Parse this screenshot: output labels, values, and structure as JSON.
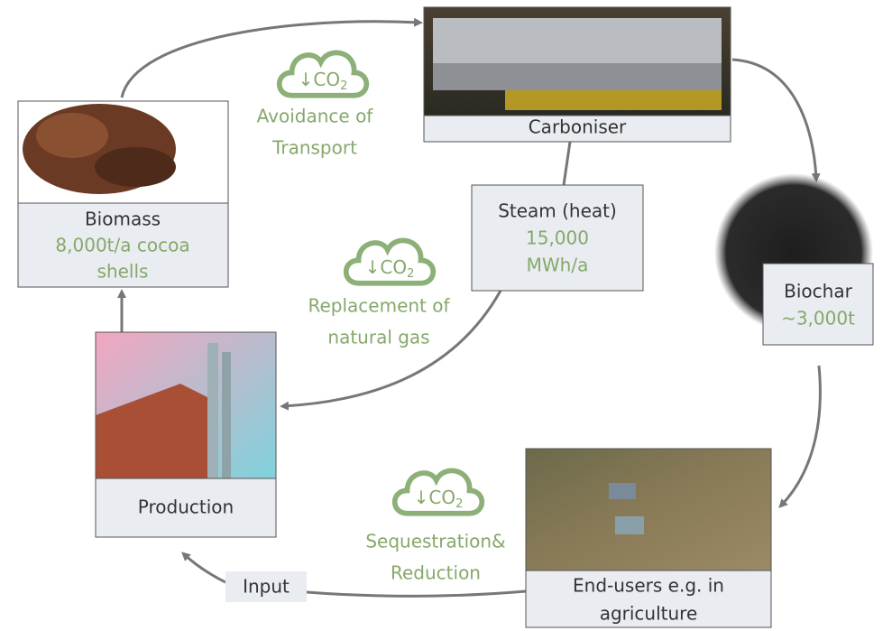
{
  "nodes": [
    {
      "label": [
        "Carboniser"
      ],
      "detail": []
    },
    {
      "label": [
        "Biochar"
      ],
      "detail": [
        "~3,000t"
      ]
    },
    {
      "label": [
        "End-users e.g. in",
        "agriculture"
      ],
      "detail": []
    },
    {
      "label": [
        "Production"
      ],
      "detail": []
    },
    {
      "label": [
        "Biomass"
      ],
      "detail": [
        "8,000t/a cocoa",
        "shells"
      ]
    }
  ],
  "steam": {
    "label": [
      "Steam (heat)"
    ],
    "detail": [
      "15,000",
      "MWh/a"
    ]
  },
  "input": "Input",
  "co2_badges": [
    {
      "symbol": "↓CO",
      "subscript": "2",
      "caption": [
        "Avoidance of",
        "Transport"
      ]
    },
    {
      "symbol": "↓CO",
      "subscript": "2",
      "caption": [
        "Replacement of",
        "natural gas"
      ]
    },
    {
      "symbol": "↓CO",
      "subscript": "2",
      "caption": [
        "Sequestration&",
        "Reduction"
      ]
    }
  ]
}
